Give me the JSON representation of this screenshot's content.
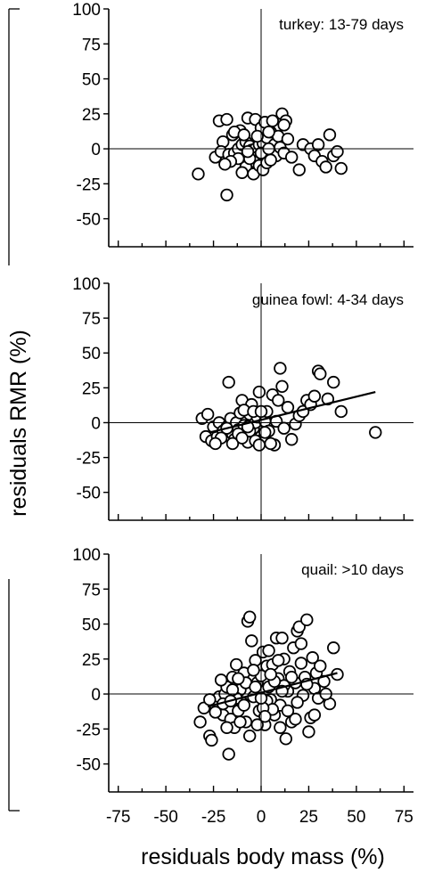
{
  "figure": {
    "ylabel": "residuals RMR (%)",
    "xlabel": "residuals body mass (%)"
  },
  "chart_data": [
    {
      "type": "scatter",
      "title": "turkey: 13-79 days",
      "xlim": [
        -80,
        80
      ],
      "ylim": [
        -70,
        100
      ],
      "yticks": [
        100,
        75,
        50,
        25,
        0,
        -25,
        -50
      ],
      "grid": false,
      "series": [
        {
          "points": [
            [
              -33,
              -18
            ],
            [
              -18,
              -33
            ],
            [
              -22,
              20
            ],
            [
              -18,
              21
            ],
            [
              -15,
              10
            ],
            [
              -20,
              5
            ],
            [
              -24,
              -6
            ],
            [
              -21,
              -2
            ],
            [
              -17,
              -4
            ],
            [
              -14,
              -3
            ],
            [
              -12,
              0
            ],
            [
              -10,
              3
            ],
            [
              -8,
              5
            ],
            [
              -6,
              2
            ],
            [
              -5,
              -1
            ],
            [
              -3,
              0
            ],
            [
              -1,
              3
            ],
            [
              1,
              4
            ],
            [
              3,
              8
            ],
            [
              5,
              12
            ],
            [
              7,
              3
            ],
            [
              9,
              9
            ],
            [
              11,
              25
            ],
            [
              13,
              20
            ],
            [
              12,
              17
            ],
            [
              -7,
              22
            ],
            [
              -3,
              21
            ],
            [
              0,
              15
            ],
            [
              2,
              19
            ],
            [
              4,
              12
            ],
            [
              6,
              -2
            ],
            [
              8,
              -5
            ],
            [
              -2,
              -6
            ],
            [
              -4,
              -9
            ],
            [
              -8,
              -13
            ],
            [
              -10,
              -17
            ],
            [
              -4,
              -18
            ],
            [
              -1,
              -12
            ],
            [
              1,
              -15
            ],
            [
              3,
              -10
            ],
            [
              5,
              -8
            ],
            [
              -6,
              -7
            ],
            [
              -12,
              -7
            ],
            [
              -16,
              -9
            ],
            [
              -19,
              -11
            ],
            [
              -11,
              13
            ],
            [
              -14,
              12
            ],
            [
              -2,
              9
            ],
            [
              10,
              1
            ],
            [
              14,
              7
            ],
            [
              12,
              -3
            ],
            [
              16,
              -6
            ],
            [
              -9,
              10
            ],
            [
              20,
              -15
            ],
            [
              22,
              3
            ],
            [
              26,
              0
            ],
            [
              28,
              -5
            ],
            [
              30,
              3
            ],
            [
              32,
              -9
            ],
            [
              34,
              -13
            ],
            [
              36,
              10
            ],
            [
              38,
              -5
            ],
            [
              40,
              -2
            ],
            [
              42,
              -14
            ],
            [
              -7,
              -2
            ],
            [
              0,
              -3
            ],
            [
              4,
              0
            ],
            [
              6,
              20
            ]
          ]
        }
      ]
    },
    {
      "type": "scatter",
      "title": "guinea fowl: 4-34 days",
      "xlim": [
        -80,
        80
      ],
      "ylim": [
        -70,
        100
      ],
      "yticks": [
        100,
        75,
        50,
        25,
        0,
        -25,
        -50
      ],
      "grid": false,
      "series": [
        {
          "points": [
            [
              -31,
              3
            ],
            [
              -28,
              6
            ],
            [
              -29,
              -10
            ],
            [
              -26,
              -13
            ],
            [
              -23,
              -10
            ],
            [
              -25,
              -3
            ],
            [
              -22,
              0
            ],
            [
              -20,
              -6
            ],
            [
              -18,
              -3
            ],
            [
              -17,
              29
            ],
            [
              -16,
              3
            ],
            [
              -15,
              -8
            ],
            [
              -14,
              -12
            ],
            [
              -13,
              0
            ],
            [
              -12,
              -5
            ],
            [
              -11,
              7
            ],
            [
              -10,
              16
            ],
            [
              -9,
              -2
            ],
            [
              -8,
              -8
            ],
            [
              -7,
              -14
            ],
            [
              -6,
              6
            ],
            [
              -5,
              13
            ],
            [
              -4,
              -4
            ],
            [
              -3,
              0
            ],
            [
              -2,
              4
            ],
            [
              -1,
              22
            ],
            [
              0,
              -10
            ],
            [
              1,
              -12
            ],
            [
              2,
              1
            ],
            [
              3,
              8
            ],
            [
              4,
              -6
            ],
            [
              6,
              20
            ],
            [
              7,
              -16
            ],
            [
              8,
              1
            ],
            [
              9,
              16
            ],
            [
              10,
              39
            ],
            [
              11,
              26
            ],
            [
              12,
              -4
            ],
            [
              14,
              11
            ],
            [
              16,
              -12
            ],
            [
              18,
              -1
            ],
            [
              20,
              5
            ],
            [
              22,
              8
            ],
            [
              24,
              16
            ],
            [
              26,
              13
            ],
            [
              28,
              19
            ],
            [
              30,
              37
            ],
            [
              31,
              35
            ],
            [
              35,
              17
            ],
            [
              38,
              29
            ],
            [
              42,
              8
            ],
            [
              60,
              -7
            ],
            [
              -6,
              -6
            ],
            [
              -9,
              9
            ],
            [
              -4,
              8
            ],
            [
              0,
              8
            ],
            [
              2,
              -7
            ],
            [
              -12,
              -8
            ],
            [
              -15,
              -15
            ],
            [
              -18,
              -4
            ],
            [
              -21,
              -11
            ],
            [
              -24,
              -15
            ],
            [
              -7,
              -3
            ],
            [
              -3,
              -13
            ],
            [
              -1,
              -16
            ],
            [
              5,
              -15
            ],
            [
              -10,
              -11
            ]
          ]
        }
      ],
      "fit_line": {
        "x": [
          -27,
          60
        ],
        "y": [
          -7,
          22
        ]
      }
    },
    {
      "type": "scatter",
      "title": "quail: >10 days",
      "xlim": [
        -80,
        80
      ],
      "ylim": [
        -70,
        100
      ],
      "yticks": [
        100,
        75,
        50,
        25,
        0,
        -25,
        -50
      ],
      "xticks": [
        -75,
        -50,
        -25,
        0,
        25,
        50,
        75
      ],
      "grid": false,
      "series": [
        {
          "points": [
            [
              -32,
              -20
            ],
            [
              -30,
              -10
            ],
            [
              -27,
              -30
            ],
            [
              -26,
              -33
            ],
            [
              -24,
              -8
            ],
            [
              -22,
              -2
            ],
            [
              -20,
              -15
            ],
            [
              -19,
              0
            ],
            [
              -18,
              5
            ],
            [
              -17,
              -43
            ],
            [
              -16,
              -18
            ],
            [
              -15,
              12
            ],
            [
              -14,
              -24
            ],
            [
              -13,
              21
            ],
            [
              -12,
              -12
            ],
            [
              -11,
              3
            ],
            [
              -10,
              -6
            ],
            [
              -9,
              15
            ],
            [
              -8,
              -20
            ],
            [
              -7,
              52
            ],
            [
              -6,
              55
            ],
            [
              -5,
              38
            ],
            [
              -4,
              -2
            ],
            [
              -3,
              24
            ],
            [
              -2,
              8
            ],
            [
              -1,
              -12
            ],
            [
              0,
              13
            ],
            [
              1,
              30
            ],
            [
              2,
              -22
            ],
            [
              3,
              20
            ],
            [
              4,
              5
            ],
            [
              5,
              -4
            ],
            [
              6,
              21
            ],
            [
              7,
              -15
            ],
            [
              8,
              40
            ],
            [
              9,
              11
            ],
            [
              10,
              -8
            ],
            [
              11,
              40
            ],
            [
              12,
              25
            ],
            [
              13,
              -32
            ],
            [
              14,
              2
            ],
            [
              15,
              16
            ],
            [
              16,
              -20
            ],
            [
              17,
              33
            ],
            [
              18,
              8
            ],
            [
              19,
              45
            ],
            [
              20,
              48
            ],
            [
              21,
              36
            ],
            [
              22,
              -1
            ],
            [
              23,
              12
            ],
            [
              24,
              53
            ],
            [
              25,
              -27
            ],
            [
              26,
              -17
            ],
            [
              27,
              26
            ],
            [
              28,
              4
            ],
            [
              29,
              15
            ],
            [
              30,
              -3
            ],
            [
              31,
              20
            ],
            [
              33,
              9
            ],
            [
              36,
              -7
            ],
            [
              38,
              33
            ],
            [
              40,
              14
            ],
            [
              -20,
              -7
            ],
            [
              -18,
              -24
            ],
            [
              -13,
              -3
            ],
            [
              -11,
              -20
            ],
            [
              -9,
              -8
            ],
            [
              -6,
              -30
            ],
            [
              -2,
              -22
            ],
            [
              3,
              -5
            ],
            [
              6,
              -11
            ],
            [
              9,
              24
            ],
            [
              12,
              6
            ],
            [
              16,
              12
            ],
            [
              18,
              -18
            ],
            [
              21,
              22
            ],
            [
              -15,
              3
            ],
            [
              -8,
              8
            ],
            [
              -4,
              17
            ],
            [
              1,
              -10
            ],
            [
              4,
              31
            ],
            [
              7,
              9
            ],
            [
              -24,
              -13
            ],
            [
              -16,
              -5
            ],
            [
              -12,
              11
            ],
            [
              0,
              -3
            ],
            [
              5,
              14
            ],
            [
              10,
              -24
            ],
            [
              14,
              -12
            ],
            [
              -21,
              10
            ],
            [
              -27,
              -4
            ],
            [
              -3,
              5
            ],
            [
              2,
              -16
            ],
            [
              11,
              2
            ],
            [
              19,
              -6
            ],
            [
              24,
              7
            ],
            [
              28,
              -15
            ],
            [
              34,
              0
            ]
          ]
        }
      ],
      "fit_line": {
        "x": [
          -28,
          40
        ],
        "y": [
          -9,
          15
        ]
      }
    }
  ]
}
